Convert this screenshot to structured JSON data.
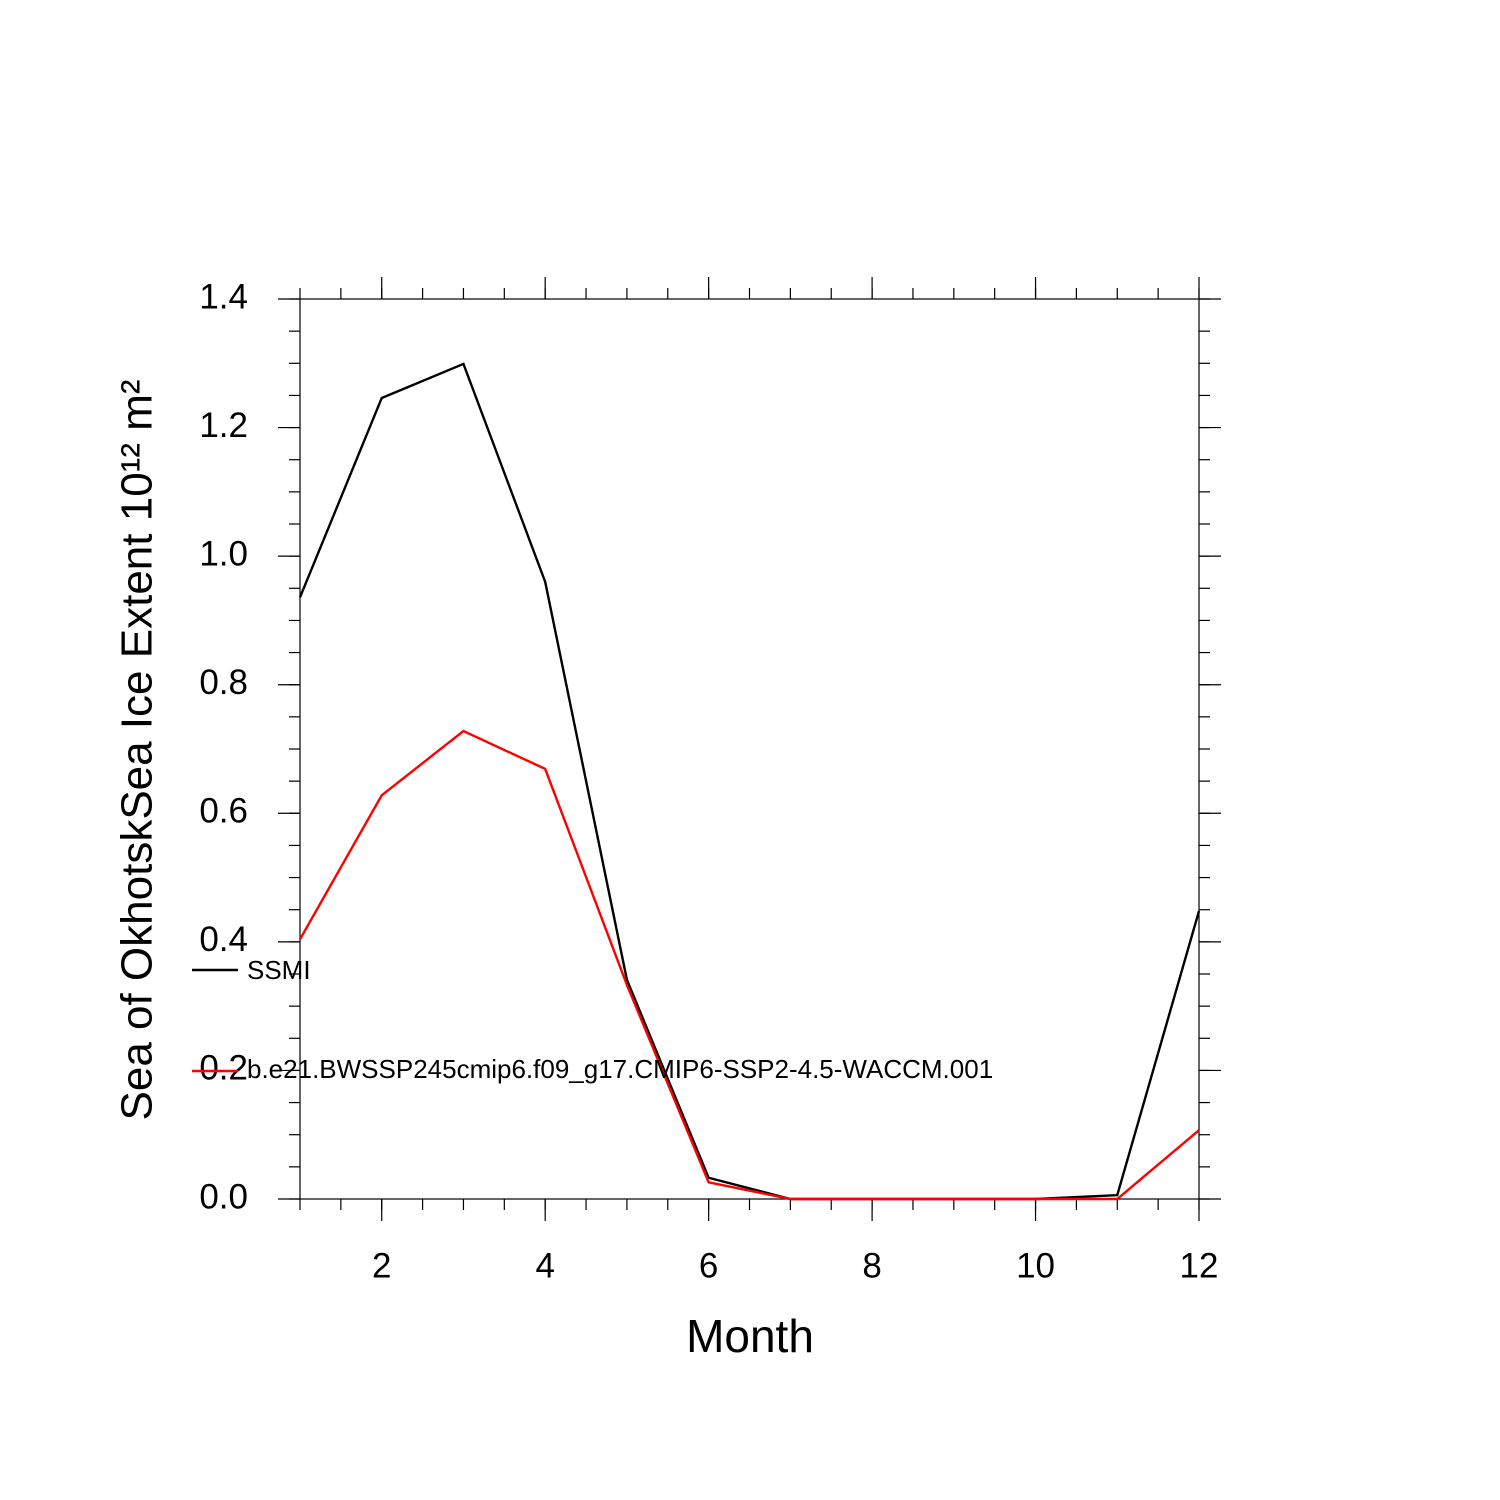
{
  "chart_data": {
    "type": "line",
    "ylabel": "Sea of OkhotskSea Ice Extent 10¹² m²",
    "xlabel": "Month",
    "x": [
      1,
      2,
      3,
      4,
      5,
      6,
      7,
      8,
      9,
      10,
      11,
      12
    ],
    "series": [
      {
        "name": "SSMI",
        "color": "#000000",
        "values": [
          0.936,
          1.246,
          1.299,
          0.96,
          0.341,
          0.033,
          0,
          0,
          0,
          0,
          0.006,
          0.448
        ]
      },
      {
        "name": "b.e21.BWSSP245cmip6.f09_g17.CMIP6-SSP2-4.5-WACCM.001",
        "color": "#ff0000",
        "values": [
          0.404,
          0.628,
          0.728,
          0.669,
          0.333,
          0.026,
          0,
          0,
          0,
          0,
          0,
          0.107
        ]
      }
    ],
    "xlim": [
      1,
      12
    ],
    "xticks": [
      2,
      4,
      6,
      8,
      10,
      12
    ],
    "ylim": [
      0,
      1.4
    ],
    "yticks": [
      {
        "value": 0,
        "label": "0.0"
      },
      0.2,
      0.4,
      0.6,
      0.8,
      {
        "value": 1,
        "label": "1.0"
      },
      1.2,
      1.4
    ]
  }
}
